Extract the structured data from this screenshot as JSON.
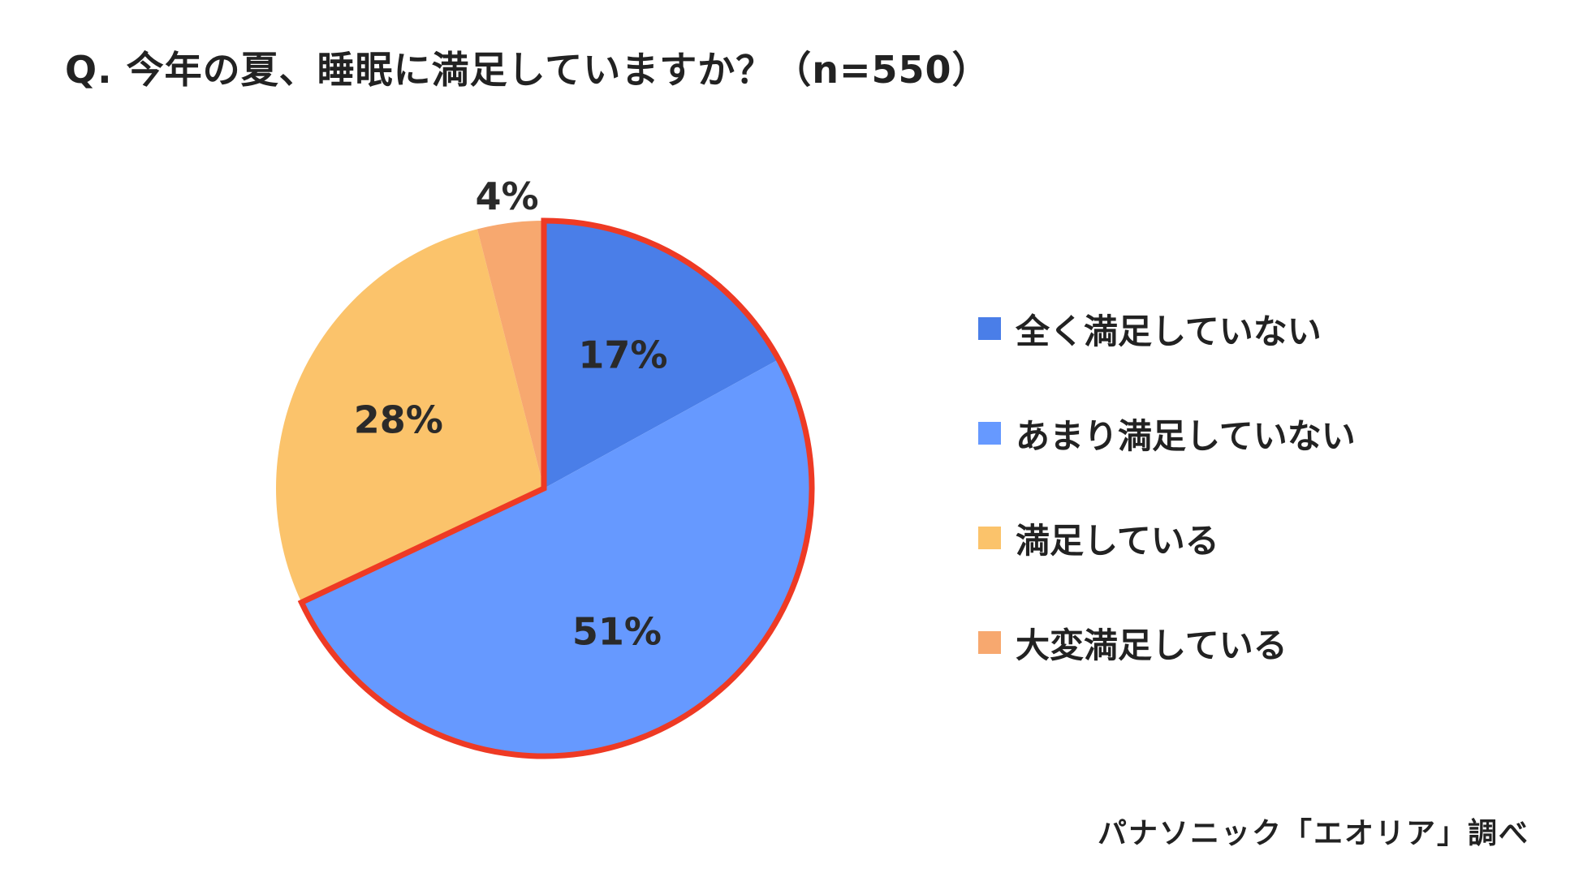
{
  "title": "Q. 今年の夏、睡眠に満足していますか？（n=550）",
  "source": "パナソニック「エオリア」調べ",
  "chart_data": {
    "type": "pie",
    "title": "Q. 今年の夏、睡眠に満足していますか？（n=550）",
    "start": "12 o'clock",
    "direction": "clockwise",
    "legend_position": "right",
    "highlight": {
      "categories": [
        "全く満足していない",
        "あまり満足していない"
      ],
      "outline_color": "#EE3A24"
    },
    "slices": [
      {
        "label": "全く満足していない",
        "value": 17,
        "display": "17%",
        "color": "#4A7EE8"
      },
      {
        "label": "あまり満足していない",
        "value": 51,
        "display": "51%",
        "color": "#6699FF"
      },
      {
        "label": "満足している",
        "value": 28,
        "display": "28%",
        "color": "#FBC36B"
      },
      {
        "label": "大変満足している",
        "value": 4,
        "display": "4%",
        "color": "#F7A86F"
      }
    ]
  }
}
